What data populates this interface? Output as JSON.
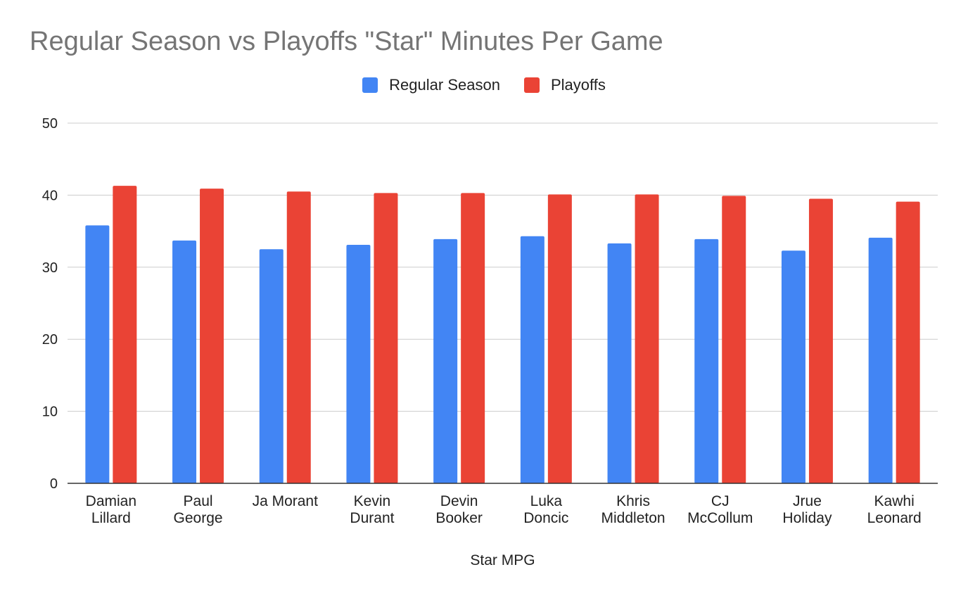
{
  "chart_data": {
    "type": "bar",
    "title": "Regular Season vs Playoffs \"Star\" Minutes Per Game",
    "xlabel": "Star MPG",
    "ylabel": "",
    "ylim": [
      0,
      50
    ],
    "yticks": [
      0,
      10,
      20,
      30,
      40,
      50
    ],
    "grid": true,
    "legend_position": "top",
    "categories": [
      [
        "Damian",
        "Lillard"
      ],
      [
        "Paul",
        "George"
      ],
      [
        "Ja Morant"
      ],
      [
        "Kevin",
        "Durant"
      ],
      [
        "Devin",
        "Booker"
      ],
      [
        "Luka",
        "Doncic"
      ],
      [
        "Khris",
        "Middleton"
      ],
      [
        "CJ",
        "McCollum"
      ],
      [
        "Jrue",
        "Holiday"
      ],
      [
        "Kawhi",
        "Leonard"
      ]
    ],
    "series": [
      {
        "name": "Regular Season",
        "color": "#4285f4",
        "values": [
          35.8,
          33.7,
          32.5,
          33.1,
          33.9,
          34.3,
          33.3,
          33.9,
          32.3,
          34.1
        ]
      },
      {
        "name": "Playoffs",
        "color": "#ea4335",
        "values": [
          41.3,
          40.9,
          40.5,
          40.3,
          40.3,
          40.1,
          40.1,
          39.9,
          39.5,
          39.1
        ]
      }
    ]
  }
}
